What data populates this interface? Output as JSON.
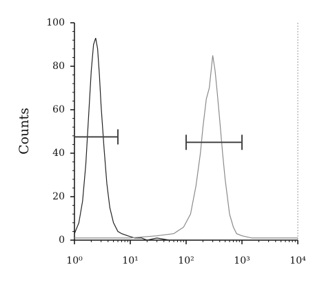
{
  "chart_data": {
    "type": "histogram-line",
    "ylabel": "Counts",
    "xscale": "log",
    "xlim": [
      1,
      10000
    ],
    "ylim": [
      0,
      100
    ],
    "xticks": [
      {
        "value": 1,
        "label": "10⁰"
      },
      {
        "value": 10,
        "label": "10¹"
      },
      {
        "value": 100,
        "label": "10²"
      },
      {
        "value": 1000,
        "label": "10³"
      },
      {
        "value": 10000,
        "label": "10⁴"
      }
    ],
    "yticks": [
      0,
      20,
      40,
      60,
      80,
      100
    ],
    "series": [
      {
        "color": "#222222",
        "x": [
          1,
          1.2,
          1.4,
          1.6,
          1.8,
          2.0,
          2.2,
          2.4,
          2.6,
          2.8,
          3.0,
          3.4,
          3.8,
          4.3,
          5,
          6,
          7,
          9,
          12,
          16,
          20,
          30,
          50,
          100
        ],
        "values": [
          3,
          8,
          18,
          35,
          58,
          78,
          90,
          93,
          88,
          76,
          62,
          42,
          26,
          15,
          8,
          4,
          3,
          2,
          1,
          1,
          0,
          1,
          0,
          0
        ]
      },
      {
        "color": "#8a8a8a",
        "x": [
          1,
          3,
          10,
          30,
          60,
          90,
          120,
          150,
          180,
          200,
          230,
          260,
          300,
          330,
          360,
          400,
          450,
          500,
          600,
          700,
          800,
          1000,
          1500,
          2000,
          5000,
          10000
        ],
        "values": [
          1,
          1,
          1,
          2,
          3,
          6,
          12,
          25,
          40,
          52,
          65,
          70,
          85,
          78,
          68,
          55,
          40,
          28,
          12,
          6,
          3,
          2,
          1,
          1,
          1,
          1
        ]
      }
    ],
    "gates": [
      {
        "x": [
          1,
          6
        ],
        "y": 47.5
      },
      {
        "x": [
          100,
          1000
        ],
        "y": 45
      }
    ]
  }
}
